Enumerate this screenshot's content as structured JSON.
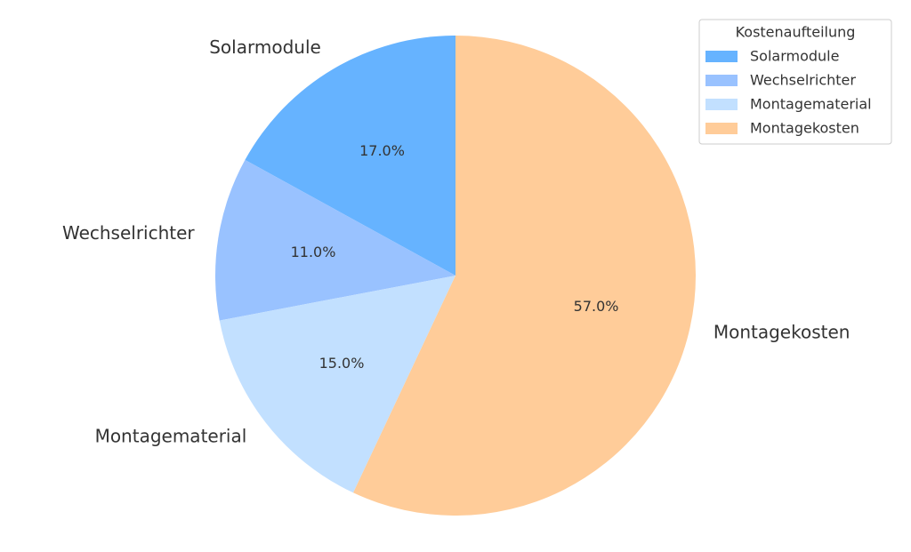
{
  "chart_data": {
    "type": "pie",
    "categories": [
      "Solarmodule",
      "Wechselrichter",
      "Montagematerial",
      "Montagekosten"
    ],
    "values": [
      17,
      11,
      15,
      57
    ],
    "value_labels": [
      "17.0%",
      "11.0%",
      "15.0%",
      "57.0%"
    ],
    "colors": [
      "#66b3ff",
      "#99c2ff",
      "#c2e0ff",
      "#ffcc99"
    ],
    "legend_title": "Kostenaufteilung",
    "legend": "upper right"
  }
}
